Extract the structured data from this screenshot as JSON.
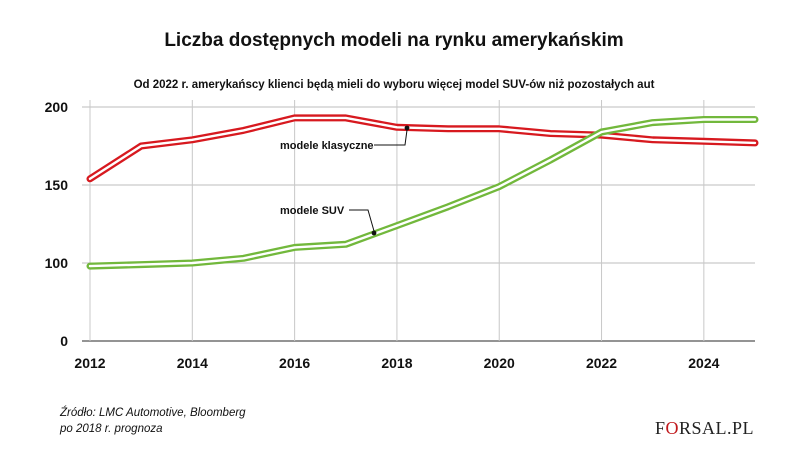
{
  "chart_data": {
    "type": "line",
    "title": "Liczba dostępnych modeli na rynku amerykańskim",
    "subtitle": "Od 2022 r. amerykańscy klienci będą mieli do wyboru więcej model SUV-ów niż pozostałych aut",
    "x": [
      2012,
      2013,
      2014,
      2015,
      2016,
      2017,
      2018,
      2019,
      2020,
      2021,
      2022,
      2023,
      2024,
      2025
    ],
    "x_ticks": [
      "2012",
      "2014",
      "2016",
      "2018",
      "2020",
      "2022",
      "2024"
    ],
    "y_ticks": [
      "0",
      "100",
      "150",
      "200"
    ],
    "series": [
      {
        "name": "modele klasyczne",
        "color": "#d7191f",
        "values": [
          154,
          175,
          179,
          185,
          193,
          193,
          187,
          186,
          186,
          183,
          182,
          179,
          178,
          177
        ]
      },
      {
        "name": "modele SUV",
        "color": "#72b83c",
        "values": [
          98,
          99,
          100,
          103,
          110,
          112,
          124,
          136,
          149,
          166,
          184,
          190,
          192,
          192
        ]
      }
    ],
    "grid": true,
    "note": "Źródło: LMC Automotive, Bloomberg",
    "note2": "po 2018 r. prognoza"
  },
  "brand": {
    "logo_prefix": "F",
    "logo_o": "O",
    "logo_suffix": "RSAL.PL"
  }
}
